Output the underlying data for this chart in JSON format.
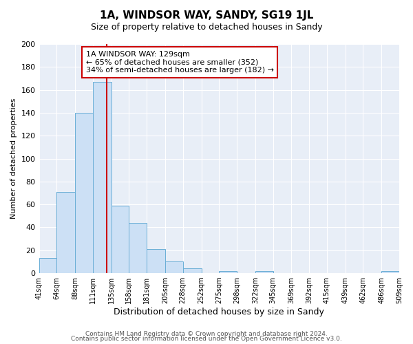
{
  "title": "1A, WINDSOR WAY, SANDY, SG19 1JL",
  "subtitle": "Size of property relative to detached houses in Sandy",
  "xlabel": "Distribution of detached houses by size in Sandy",
  "ylabel": "Number of detached properties",
  "bin_edges": [
    41,
    64,
    88,
    111,
    135,
    158,
    181,
    205,
    228,
    252,
    275,
    298,
    322,
    345,
    369,
    392,
    415,
    439,
    462,
    486,
    509
  ],
  "bin_counts": [
    13,
    71,
    140,
    167,
    59,
    44,
    21,
    10,
    4,
    0,
    2,
    0,
    2,
    0,
    0,
    0,
    0,
    0,
    0,
    2
  ],
  "bar_facecolor": "#cce0f5",
  "bar_edgecolor": "#6aaed6",
  "vline_x": 129,
  "vline_color": "#cc0000",
  "annotation_title": "1A WINDSOR WAY: 129sqm",
  "annotation_line1": "← 65% of detached houses are smaller (352)",
  "annotation_line2": "34% of semi-detached houses are larger (182) →",
  "ylim": [
    0,
    200
  ],
  "yticks": [
    0,
    20,
    40,
    60,
    80,
    100,
    120,
    140,
    160,
    180,
    200
  ],
  "tick_labels": [
    "41sqm",
    "64sqm",
    "88sqm",
    "111sqm",
    "135sqm",
    "158sqm",
    "181sqm",
    "205sqm",
    "228sqm",
    "252sqm",
    "275sqm",
    "298sqm",
    "322sqm",
    "345sqm",
    "369sqm",
    "392sqm",
    "415sqm",
    "439sqm",
    "462sqm",
    "486sqm",
    "509sqm"
  ],
  "footer_line1": "Contains HM Land Registry data © Crown copyright and database right 2024.",
  "footer_line2": "Contains public sector information licensed under the Open Government Licence v3.0.",
  "bg_color": "#ffffff",
  "plot_bg_color": "#e8eef7",
  "grid_color": "#ffffff",
  "title_fontsize": 11,
  "subtitle_fontsize": 9,
  "xlabel_fontsize": 9,
  "ylabel_fontsize": 8
}
